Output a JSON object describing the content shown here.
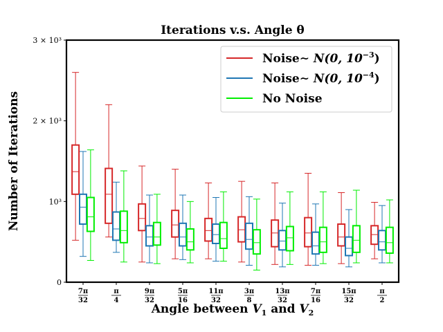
{
  "chart_data": {
    "type": "box",
    "title": "Iterations v.s. Angle θ",
    "xlabel": "Angle between V1 and V2",
    "ylabel": "Number of Iterations",
    "ylim": [
      0,
      3000
    ],
    "yticks": [
      {
        "value": 0,
        "label": "0"
      },
      {
        "value": 1000,
        "label": "10³"
      },
      {
        "value": 2000,
        "label": "2 × 10³"
      },
      {
        "value": 3000,
        "label": "3 × 10³"
      }
    ],
    "categories": [
      {
        "num": "7π",
        "den": "32"
      },
      {
        "num": "π",
        "den": "4"
      },
      {
        "num": "9π",
        "den": "32"
      },
      {
        "num": "5π",
        "den": "16"
      },
      {
        "num": "11π",
        "den": "32"
      },
      {
        "num": "3π",
        "den": "8"
      },
      {
        "num": "13π",
        "den": "32"
      },
      {
        "num": "7π",
        "den": "16"
      },
      {
        "num": "15π",
        "den": "32"
      },
      {
        "num": "π",
        "den": "2"
      }
    ],
    "legend": {
      "position": "top-right"
    },
    "series": [
      {
        "name": "Noise∼ N(0, 10⁻³)",
        "legend_prefix": "Noise∼ ",
        "legend_math": "N(0, 10",
        "legend_exp": "−3",
        "legend_suffix": ")",
        "color": "#d62728",
        "boxes": [
          {
            "whisker_low": 520,
            "q1": 1090,
            "median": 1370,
            "q3": 1700,
            "whisker_high": 2600
          },
          {
            "whisker_low": 560,
            "q1": 730,
            "median": 1090,
            "q3": 1410,
            "whisker_high": 2200
          },
          {
            "whisker_low": 250,
            "q1": 640,
            "median": 790,
            "q3": 970,
            "whisker_high": 1440
          },
          {
            "whisker_low": 290,
            "q1": 560,
            "median": 710,
            "q3": 890,
            "whisker_high": 1400
          },
          {
            "whisker_low": 290,
            "q1": 510,
            "median": 640,
            "q3": 790,
            "whisker_high": 1230
          },
          {
            "whisker_low": 250,
            "q1": 500,
            "median": 650,
            "q3": 810,
            "whisker_high": 1250
          },
          {
            "whisker_low": 220,
            "q1": 440,
            "median": 610,
            "q3": 770,
            "whisker_high": 1230
          },
          {
            "whisker_low": 210,
            "q1": 440,
            "median": 610,
            "q3": 800,
            "whisker_high": 1350
          },
          {
            "whisker_low": 230,
            "q1": 450,
            "median": 560,
            "q3": 720,
            "whisker_high": 1110
          },
          {
            "whisker_low": 290,
            "q1": 470,
            "median": 590,
            "q3": 700,
            "whisker_high": 990
          }
        ]
      },
      {
        "name": "Noise∼ N(0, 10⁻⁴)",
        "legend_prefix": "Noise∼ ",
        "legend_math": "N(0, 10",
        "legend_exp": "−4",
        "legend_suffix": ")",
        "color": "#1f77b4",
        "boxes": [
          {
            "whisker_low": 320,
            "q1": 720,
            "median": 930,
            "q3": 1090,
            "whisker_high": 1620
          },
          {
            "whisker_low": 370,
            "q1": 520,
            "median": 660,
            "q3": 870,
            "whisker_high": 1240
          },
          {
            "whisker_low": 240,
            "q1": 450,
            "median": 560,
            "q3": 700,
            "whisker_high": 1080
          },
          {
            "whisker_low": 280,
            "q1": 450,
            "median": 560,
            "q3": 730,
            "whisker_high": 1080
          },
          {
            "whisker_low": 260,
            "q1": 480,
            "median": 590,
            "q3": 720,
            "whisker_high": 1050
          },
          {
            "whisker_low": 210,
            "q1": 410,
            "median": 530,
            "q3": 730,
            "whisker_high": 1060
          },
          {
            "whisker_low": 190,
            "q1": 400,
            "median": 510,
            "q3": 640,
            "whisker_high": 980
          },
          {
            "whisker_low": 210,
            "q1": 350,
            "median": 450,
            "q3": 620,
            "whisker_high": 970
          },
          {
            "whisker_low": 190,
            "q1": 330,
            "median": 420,
            "q3": 560,
            "whisker_high": 900
          },
          {
            "whisker_low": 240,
            "q1": 400,
            "median": 500,
            "q3": 640,
            "whisker_high": 950
          }
        ]
      },
      {
        "name": "No Noise",
        "legend_prefix": "No Noise",
        "legend_math": "",
        "legend_exp": "",
        "legend_suffix": "",
        "color": "#00ee00",
        "boxes": [
          {
            "whisker_low": 270,
            "q1": 630,
            "median": 810,
            "q3": 1050,
            "whisker_high": 1640
          },
          {
            "whisker_low": 250,
            "q1": 490,
            "median": 640,
            "q3": 880,
            "whisker_high": 1380
          },
          {
            "whisker_low": 230,
            "q1": 460,
            "median": 560,
            "q3": 740,
            "whisker_high": 1090
          },
          {
            "whisker_low": 240,
            "q1": 400,
            "median": 500,
            "q3": 660,
            "whisker_high": 1000
          },
          {
            "whisker_low": 260,
            "q1": 420,
            "median": 540,
            "q3": 740,
            "whisker_high": 1120
          },
          {
            "whisker_low": 150,
            "q1": 350,
            "median": 490,
            "q3": 650,
            "whisker_high": 1030
          },
          {
            "whisker_low": 220,
            "q1": 390,
            "median": 550,
            "q3": 690,
            "whisker_high": 1120
          },
          {
            "whisker_low": 230,
            "q1": 370,
            "median": 500,
            "q3": 680,
            "whisker_high": 1120
          },
          {
            "whisker_low": 240,
            "q1": 370,
            "median": 520,
            "q3": 700,
            "whisker_high": 1140
          },
          {
            "whisker_low": 240,
            "q1": 360,
            "median": 490,
            "q3": 680,
            "whisker_high": 1020
          }
        ]
      }
    ]
  }
}
